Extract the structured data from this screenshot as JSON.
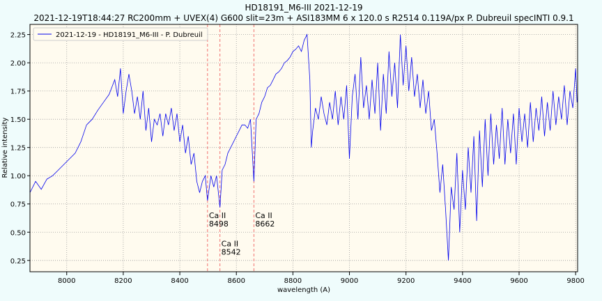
{
  "chart_data": {
    "type": "line",
    "title": "HD18191_M6-III 2021-12-19",
    "subtitle": "2021-12-19T18:44:27 RC200mm + UVEX(4) G600 slit=23m + ASI183MM 6 x 120.0 s   R2514  0.119A/px  P. Dubreuil specINTI 0.9.1",
    "x_label": "wavelength (A)",
    "y_label": "Relative intensity",
    "x": [
      7870,
      7890,
      7910,
      7930,
      7950,
      7970,
      7990,
      8010,
      8030,
      8050,
      8070,
      8090,
      8110,
      8130,
      8150,
      8170,
      8180,
      8190,
      8200,
      8210,
      8220,
      8230,
      8240,
      8250,
      8260,
      8270,
      8280,
      8290,
      8300,
      8310,
      8320,
      8330,
      8340,
      8350,
      8360,
      8370,
      8380,
      8390,
      8400,
      8410,
      8420,
      8430,
      8440,
      8450,
      8460,
      8470,
      8480,
      8490,
      8498,
      8510,
      8520,
      8530,
      8542,
      8550,
      8560,
      8570,
      8580,
      8590,
      8600,
      8610,
      8620,
      8630,
      8640,
      8650,
      8662,
      8670,
      8680,
      8690,
      8700,
      8710,
      8720,
      8730,
      8740,
      8750,
      8760,
      8770,
      8780,
      8790,
      8800,
      8810,
      8820,
      8830,
      8840,
      8850,
      8860,
      8865,
      8870,
      8880,
      8890,
      8900,
      8910,
      8920,
      8930,
      8940,
      8950,
      8960,
      8970,
      8980,
      8990,
      9000,
      9010,
      9020,
      9030,
      9040,
      9050,
      9060,
      9070,
      9080,
      9090,
      9100,
      9110,
      9120,
      9130,
      9140,
      9150,
      9160,
      9170,
      9180,
      9190,
      9200,
      9210,
      9220,
      9230,
      9240,
      9250,
      9260,
      9270,
      9280,
      9290,
      9300,
      9310,
      9320,
      9330,
      9340,
      9350,
      9360,
      9370,
      9380,
      9390,
      9400,
      9410,
      9420,
      9430,
      9440,
      9450,
      9460,
      9470,
      9480,
      9490,
      9500,
      9510,
      9520,
      9530,
      9540,
      9550,
      9560,
      9570,
      9580,
      9590,
      9600,
      9610,
      9620,
      9630,
      9640,
      9650,
      9660,
      9670,
      9680,
      9690,
      9700,
      9710,
      9720,
      9730,
      9740,
      9750,
      9760,
      9770,
      9780,
      9790,
      9800,
      9805
    ],
    "series": [
      {
        "name": "2021-12-19 - HD18191_M6-III - P. Dubreuil",
        "color": "#0000ee",
        "values": [
          0.85,
          0.95,
          0.88,
          0.97,
          1.0,
          1.05,
          1.1,
          1.15,
          1.2,
          1.3,
          1.45,
          1.5,
          1.58,
          1.65,
          1.72,
          1.85,
          1.7,
          1.95,
          1.55,
          1.75,
          1.9,
          1.75,
          1.55,
          1.7,
          1.5,
          1.75,
          1.4,
          1.6,
          1.3,
          1.5,
          1.45,
          1.55,
          1.35,
          1.55,
          1.45,
          1.6,
          1.4,
          1.55,
          1.3,
          1.45,
          1.2,
          1.35,
          1.1,
          1.2,
          0.95,
          0.85,
          0.95,
          1.0,
          0.78,
          1.0,
          0.9,
          1.0,
          0.72,
          1.05,
          1.1,
          1.2,
          1.25,
          1.3,
          1.35,
          1.4,
          1.45,
          1.45,
          1.42,
          1.5,
          0.95,
          1.5,
          1.55,
          1.65,
          1.7,
          1.78,
          1.8,
          1.85,
          1.9,
          1.92,
          1.95,
          2.0,
          2.02,
          2.05,
          2.1,
          2.12,
          2.15,
          2.1,
          2.2,
          2.25,
          1.85,
          1.25,
          1.4,
          1.6,
          1.5,
          1.7,
          1.55,
          1.45,
          1.65,
          1.5,
          1.75,
          1.45,
          1.7,
          1.5,
          1.8,
          1.15,
          1.7,
          1.9,
          1.5,
          2.05,
          1.6,
          1.8,
          1.5,
          1.85,
          1.55,
          2.0,
          1.4,
          1.9,
          1.55,
          2.1,
          1.7,
          2.0,
          1.6,
          2.25,
          1.8,
          2.15,
          1.75,
          2.05,
          1.7,
          1.9,
          1.6,
          1.85,
          1.55,
          1.75,
          1.4,
          1.5,
          1.2,
          0.85,
          1.1,
          0.7,
          0.25,
          0.9,
          0.7,
          1.2,
          0.5,
          1.05,
          0.7,
          1.25,
          0.85,
          1.35,
          0.6,
          1.4,
          0.9,
          1.5,
          1.0,
          1.55,
          1.1,
          1.45,
          1.15,
          1.6,
          1.1,
          1.5,
          1.2,
          1.55,
          1.1,
          1.6,
          1.3,
          1.55,
          1.25,
          1.65,
          1.3,
          1.6,
          1.4,
          1.7,
          1.35,
          1.65,
          1.4,
          1.75,
          1.45,
          1.7,
          1.5,
          1.8,
          1.45,
          1.75,
          1.6,
          1.95,
          1.65
        ]
      }
    ],
    "xlim": [
      7870,
      9807
    ],
    "ylim": [
      0.15,
      2.34
    ],
    "xticks": [
      8000,
      8200,
      8400,
      8600,
      8800,
      9000,
      9200,
      9400,
      9600,
      9800
    ],
    "yticks": [
      0.25,
      {
        "value": 0.5,
        "label": "0.50"
      },
      0.75,
      {
        "value": 1,
        "label": "1.00"
      },
      1.25,
      {
        "value": 1.5,
        "label": "1.50"
      },
      1.75,
      {
        "value": 2,
        "label": "2.00"
      },
      2.25
    ],
    "grid": true,
    "legend": "upper left",
    "vlines": [
      8498,
      8542,
      8662
    ],
    "vline_color": "#f06060",
    "annotations": [
      {
        "text": [
          "Ca II",
          "8498"
        ],
        "x": 8498,
        "y": 0.55
      },
      {
        "text": [
          "Ca II",
          "8542"
        ],
        "x": 8542,
        "y": 0.3
      },
      {
        "text": [
          "Ca II",
          "8662"
        ],
        "x": 8662,
        "y": 0.55
      }
    ]
  }
}
